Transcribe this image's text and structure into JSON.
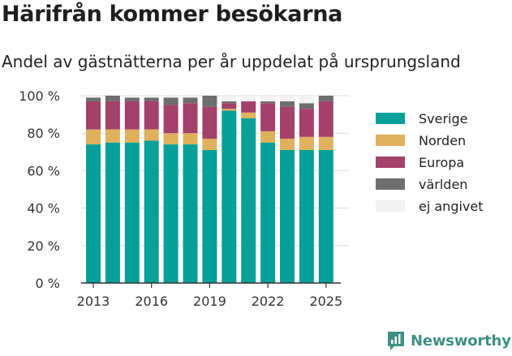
{
  "header": {
    "title": "Härifrån kommer besökarna",
    "subtitle": "Andel av gästnätterna per år uppdelat på ursprungsland"
  },
  "brand": {
    "name": "Newsworthy",
    "color": "#3f8f84"
  },
  "chart_data": {
    "type": "bar",
    "stacked": true,
    "categories": [
      "2013",
      "2014",
      "2015",
      "2016",
      "2017",
      "2018",
      "2019",
      "2020",
      "2021",
      "2022",
      "2023",
      "2024",
      "2025"
    ],
    "x_tick_labels": [
      "2013",
      "2016",
      "2019",
      "2022",
      "2025"
    ],
    "y_tick_labels": [
      "0 %",
      "20 %",
      "40 %",
      "60 %",
      "80 %",
      "100 %"
    ],
    "ylim": [
      0,
      100
    ],
    "grid": true,
    "legend_position": "right",
    "series": [
      {
        "name": "Sverige",
        "color": "#06a098",
        "values": [
          74,
          75,
          75,
          76,
          74,
          74,
          71,
          92,
          88,
          75,
          71,
          71,
          71
        ]
      },
      {
        "name": "Norden",
        "color": "#dfb15d",
        "values": [
          8,
          7,
          7,
          6,
          6,
          6,
          6,
          1,
          3,
          6,
          6,
          7,
          7
        ]
      },
      {
        "name": "Europa",
        "color": "#a44169",
        "values": [
          15,
          15,
          15,
          15,
          15,
          16,
          17,
          3,
          6,
          15,
          17,
          15,
          19
        ]
      },
      {
        "name": "världen",
        "color": "#6e6e6e",
        "values": [
          2,
          3,
          2,
          2,
          4,
          3,
          6,
          1,
          0,
          1,
          3,
          3,
          3
        ]
      },
      {
        "name": "ej angivet",
        "color": "#f2f2f2",
        "values": [
          1,
          0,
          1,
          1,
          1,
          1,
          0,
          3,
          3,
          3,
          3,
          4,
          0
        ]
      }
    ]
  }
}
